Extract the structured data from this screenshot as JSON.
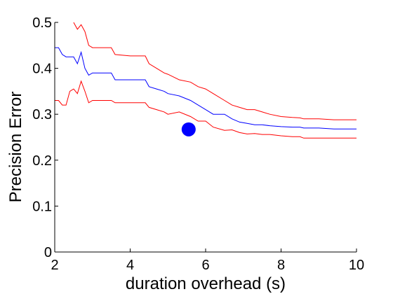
{
  "chart_data": {
    "type": "line",
    "xlabel": "duration overhead (s)",
    "ylabel": "Precision Error",
    "xlim": [
      2,
      10
    ],
    "ylim": [
      0,
      0.5
    ],
    "xticks": [
      "2",
      "4",
      "6",
      "8",
      "10"
    ],
    "yticks": [
      "0",
      "0.1",
      "0.2",
      "0.3",
      "0.4",
      "0.5"
    ],
    "grid": false,
    "colors": {
      "mean": "#0000ff",
      "bound": "#ff0000",
      "marker": "#0000ff"
    },
    "series": [
      {
        "role": "upper",
        "color": "#ff0000",
        "x": [
          2.5,
          2.6,
          2.7,
          2.8,
          2.9,
          3.0,
          3.5,
          3.6,
          4.0,
          4.4,
          4.5,
          4.7,
          4.9,
          5.0,
          5.3,
          5.6,
          5.8,
          6.0,
          6.2,
          6.5,
          6.7,
          6.9,
          7.1,
          7.3,
          7.5,
          7.7,
          8.0,
          8.3,
          8.5,
          8.6,
          9.0,
          9.4,
          10.0
        ],
        "y": [
          0.5,
          0.485,
          0.495,
          0.48,
          0.45,
          0.445,
          0.445,
          0.43,
          0.427,
          0.427,
          0.41,
          0.4,
          0.39,
          0.387,
          0.375,
          0.37,
          0.36,
          0.355,
          0.345,
          0.33,
          0.32,
          0.315,
          0.31,
          0.31,
          0.305,
          0.3,
          0.295,
          0.293,
          0.292,
          0.29,
          0.29,
          0.288,
          0.288
        ]
      },
      {
        "role": "mean",
        "color": "#0000ff",
        "x": [
          2.0,
          2.1,
          2.2,
          2.3,
          2.4,
          2.5,
          2.6,
          2.7,
          2.8,
          2.9,
          3.0,
          3.5,
          3.6,
          4.0,
          4.4,
          4.5,
          4.7,
          4.9,
          5.0,
          5.3,
          5.6,
          5.8,
          6.0,
          6.2,
          6.5,
          6.7,
          6.9,
          7.1,
          7.3,
          7.5,
          7.7,
          8.0,
          8.3,
          8.5,
          8.6,
          9.0,
          9.4,
          10.0
        ],
        "y": [
          0.445,
          0.445,
          0.43,
          0.425,
          0.425,
          0.425,
          0.41,
          0.435,
          0.4,
          0.385,
          0.39,
          0.39,
          0.375,
          0.375,
          0.375,
          0.36,
          0.355,
          0.35,
          0.345,
          0.34,
          0.33,
          0.32,
          0.31,
          0.3,
          0.3,
          0.29,
          0.283,
          0.28,
          0.277,
          0.277,
          0.275,
          0.273,
          0.272,
          0.272,
          0.27,
          0.27,
          0.268,
          0.268
        ]
      },
      {
        "role": "lower",
        "color": "#ff0000",
        "x": [
          2.0,
          2.1,
          2.2,
          2.3,
          2.4,
          2.5,
          2.6,
          2.7,
          2.8,
          2.9,
          3.0,
          3.5,
          3.6,
          4.0,
          4.4,
          4.5,
          4.7,
          4.9,
          5.0,
          5.3,
          5.6,
          5.8,
          6.0,
          6.2,
          6.5,
          6.7,
          6.9,
          7.1,
          7.3,
          7.5,
          7.7,
          8.0,
          8.3,
          8.5,
          8.6,
          9.0,
          9.4,
          10.0
        ],
        "y": [
          0.33,
          0.33,
          0.32,
          0.32,
          0.35,
          0.355,
          0.345,
          0.372,
          0.35,
          0.325,
          0.33,
          0.33,
          0.325,
          0.325,
          0.325,
          0.315,
          0.31,
          0.305,
          0.3,
          0.305,
          0.295,
          0.285,
          0.285,
          0.272,
          0.265,
          0.266,
          0.26,
          0.257,
          0.258,
          0.256,
          0.256,
          0.253,
          0.251,
          0.251,
          0.248,
          0.248,
          0.248,
          0.248
        ]
      }
    ],
    "marker": {
      "x": 5.55,
      "y": 0.267
    }
  }
}
